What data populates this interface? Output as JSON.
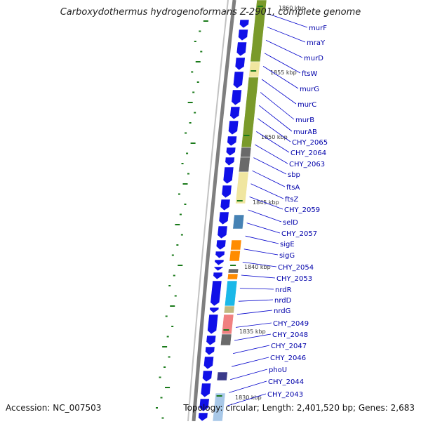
{
  "title": "Carboxydothermus hydrogenoformans Z-2901, complete genome",
  "footer": {
    "accession": "Accession: NC_007503",
    "topology": "Topology: circular; Length: 2,401,520 bp; Genes: 2,683"
  },
  "ruler": {
    "labels": [
      "1860 kbp",
      "1855 kbp",
      "1850 kbp",
      "1845 kbp",
      "1840 kbp",
      "1835 kbp",
      "1830 kbp"
    ]
  },
  "colors": {
    "cds_arrow": "#1010e8",
    "backbone": "#7f7f7f",
    "gc_skew": "#1a7a1a",
    "label_line": "#0000cc",
    "label_text": "#0000aa",
    "cog_olive": "#7a9a2a",
    "cog_yellow": "#f0e6a0",
    "cog_gray": "#6a6a6a",
    "cog_steelblue": "#4682b4",
    "cog_orange": "#ff8c00",
    "cog_cyan": "#1ab8e8",
    "cog_khaki": "#c0b880",
    "cog_pink": "#f08080",
    "cog_navy": "#3a3a8a",
    "cog_lightblue": "#a8c8e8"
  },
  "genes": [
    "murF",
    "mraY",
    "murD",
    "ftsW",
    "murG",
    "murC",
    "murB",
    "murAB",
    "CHY_2065",
    "CHY_2064",
    "CHY_2063",
    "sbp",
    "ftsA",
    "ftsZ",
    "CHY_2059",
    "selD",
    "CHY_2057",
    "sigE",
    "sigG",
    "CHY_2054",
    "CHY_2053",
    "nrdR",
    "nrdD",
    "nrdG",
    "CHY_2049",
    "CHY_2048",
    "CHY_2047",
    "CHY_2046",
    "phoU",
    "CHY_2044",
    "CHY_2043"
  ]
}
